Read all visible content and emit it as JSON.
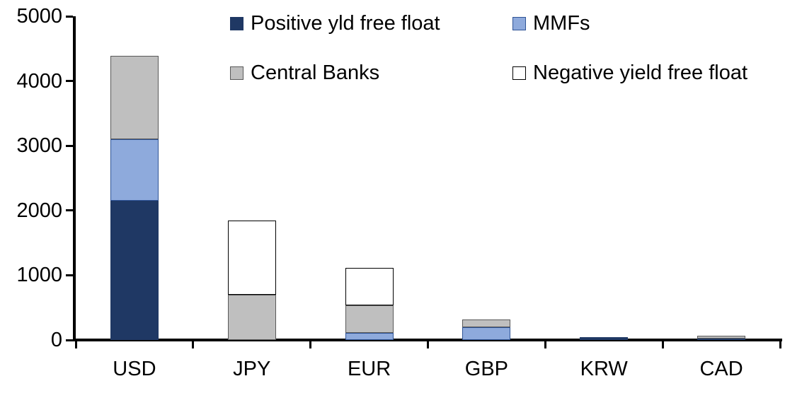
{
  "chart_data": {
    "type": "bar",
    "stacked": true,
    "title": "",
    "xlabel": "",
    "ylabel": "",
    "categories": [
      "USD",
      "JPY",
      "EUR",
      "GBP",
      "KRW",
      "CAD"
    ],
    "series": [
      {
        "name": "Positive yld free float",
        "color": "#1F3864",
        "border": "#1F3864",
        "values": [
          2150,
          0,
          0,
          0,
          40,
          25
        ]
      },
      {
        "name": "MMFs",
        "color": "#8EAADC",
        "border": "#2F5496",
        "values": [
          950,
          0,
          110,
          195,
          0,
          0
        ]
      },
      {
        "name": "Central Banks",
        "color": "#BFBFBF",
        "border": "#595959",
        "values": [
          1290,
          700,
          425,
          120,
          0,
          40
        ]
      },
      {
        "name": "Negative yield free float",
        "color": "#FFFFFF",
        "border": "#000000",
        "values": [
          0,
          1140,
          580,
          0,
          0,
          0
        ]
      }
    ],
    "totals": {
      "USD": 4390,
      "JPY": 1840,
      "EUR": 1115,
      "GBP": 315,
      "KRW": 40,
      "CAD": 65
    },
    "ylim": [
      0,
      5000
    ],
    "yticks": [
      "0",
      "1000",
      "2000",
      "3000",
      "4000",
      "5000"
    ],
    "ytick_interval": 1000,
    "legend_position": "top",
    "legend_columns": 2,
    "grid": false,
    "axis_color": "#000000",
    "text_color": "#000000",
    "background_color": "#FFFFFF"
  }
}
